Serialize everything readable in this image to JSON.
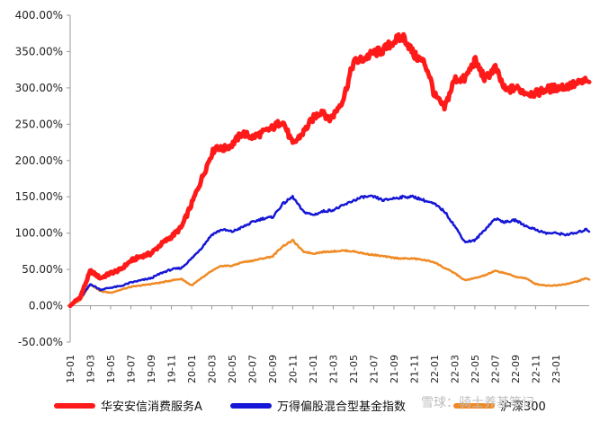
{
  "chart_data": {
    "type": "line",
    "title": "",
    "xlabel": "",
    "ylabel": "",
    "ylim": [
      -50,
      400
    ],
    "y_ticks": [
      "-50.00%",
      "0.00%",
      "50.00%",
      "100.00%",
      "150.00%",
      "200.00%",
      "250.00%",
      "300.00%",
      "350.00%",
      "400.00%"
    ],
    "y_tick_values": [
      -50,
      0,
      50,
      100,
      150,
      200,
      250,
      300,
      350,
      400
    ],
    "x_ticks": [
      "19-01",
      "19-03",
      "19-05",
      "19-07",
      "19-09",
      "19-11",
      "20-01",
      "20-03",
      "20-05",
      "20-07",
      "20-09",
      "20-11",
      "21-01",
      "21-03",
      "21-05",
      "21-07",
      "21-09",
      "21-11",
      "22-01",
      "22-03",
      "22-05",
      "22-07",
      "22-09",
      "22-11",
      "23-01"
    ],
    "x_range_months": [
      0,
      51.3
    ],
    "grid": false,
    "legend_position": "bottom",
    "series": [
      {
        "name": "华安安信消费服务A",
        "color": "#ff1a1a",
        "x": [
          0,
          1,
          2,
          3,
          4,
          5,
          6,
          7,
          8,
          9,
          10,
          11,
          12,
          13,
          14,
          14.5,
          15,
          16,
          17,
          18,
          19,
          20,
          21,
          22,
          23,
          24,
          25,
          25.5,
          26,
          27,
          28,
          29,
          30,
          31,
          32,
          33,
          34,
          35,
          35.5,
          36,
          37,
          38,
          39,
          39.5,
          40,
          41,
          42,
          43,
          44,
          45,
          46,
          47,
          48,
          49,
          50,
          51,
          51.3
        ],
        "values": [
          0,
          12,
          48,
          38,
          45,
          50,
          62,
          68,
          72,
          85,
          95,
          108,
          140,
          175,
          210,
          220,
          215,
          222,
          238,
          232,
          238,
          245,
          255,
          222,
          238,
          258,
          270,
          255,
          262,
          285,
          335,
          340,
          348,
          352,
          365,
          370,
          345,
          335,
          318,
          290,
          272,
          312,
          312,
          325,
          338,
          312,
          328,
          296,
          300,
          294,
          292,
          298,
          300,
          302,
          305,
          310,
          308
        ]
      },
      {
        "name": "万得偏股混合型基金指数",
        "color": "#1616d6",
        "x": [
          0,
          1,
          2,
          3,
          4,
          5,
          6,
          7,
          8,
          9,
          10,
          11,
          12,
          13,
          14,
          15,
          16,
          17,
          18,
          19,
          20,
          21,
          22,
          23,
          24,
          25,
          26,
          27,
          28,
          29,
          30,
          31,
          32,
          33,
          34,
          35,
          36,
          37,
          38,
          39,
          40,
          41,
          42,
          43,
          44,
          45,
          46,
          47,
          48,
          49,
          50,
          51,
          51.3
        ],
        "values": [
          0,
          10,
          30,
          22,
          25,
          27,
          32,
          35,
          38,
          45,
          50,
          52,
          65,
          80,
          98,
          105,
          102,
          108,
          115,
          120,
          122,
          140,
          150,
          130,
          125,
          130,
          132,
          138,
          145,
          150,
          150,
          145,
          148,
          150,
          150,
          145,
          140,
          130,
          110,
          88,
          90,
          105,
          120,
          115,
          118,
          110,
          105,
          100,
          100,
          98,
          100,
          105,
          102
        ]
      },
      {
        "name": "沪深300",
        "color": "#f08a24",
        "x": [
          0,
          1,
          2,
          3,
          4,
          5,
          6,
          7,
          8,
          9,
          10,
          11,
          12,
          13,
          14,
          15,
          16,
          17,
          18,
          19,
          20,
          21,
          22,
          23,
          24,
          25,
          26,
          27,
          28,
          29,
          30,
          31,
          32,
          33,
          34,
          35,
          36,
          37,
          38,
          39,
          40,
          41,
          42,
          43,
          44,
          45,
          46,
          47,
          48,
          49,
          50,
          51,
          51.3
        ],
        "values": [
          0,
          8,
          30,
          20,
          18,
          22,
          26,
          28,
          30,
          32,
          35,
          37,
          28,
          38,
          48,
          55,
          55,
          60,
          62,
          65,
          68,
          82,
          90,
          75,
          72,
          74,
          75,
          76,
          75,
          72,
          70,
          68,
          66,
          65,
          65,
          63,
          60,
          52,
          45,
          35,
          38,
          42,
          48,
          45,
          40,
          38,
          30,
          28,
          28,
          30,
          33,
          38,
          36
        ]
      }
    ]
  },
  "legend": {
    "items": [
      "华安安信消费服务A",
      "万得偏股混合型基金指数",
      "沪深300"
    ]
  },
  "watermark": "雪球：骑士养基笔记"
}
